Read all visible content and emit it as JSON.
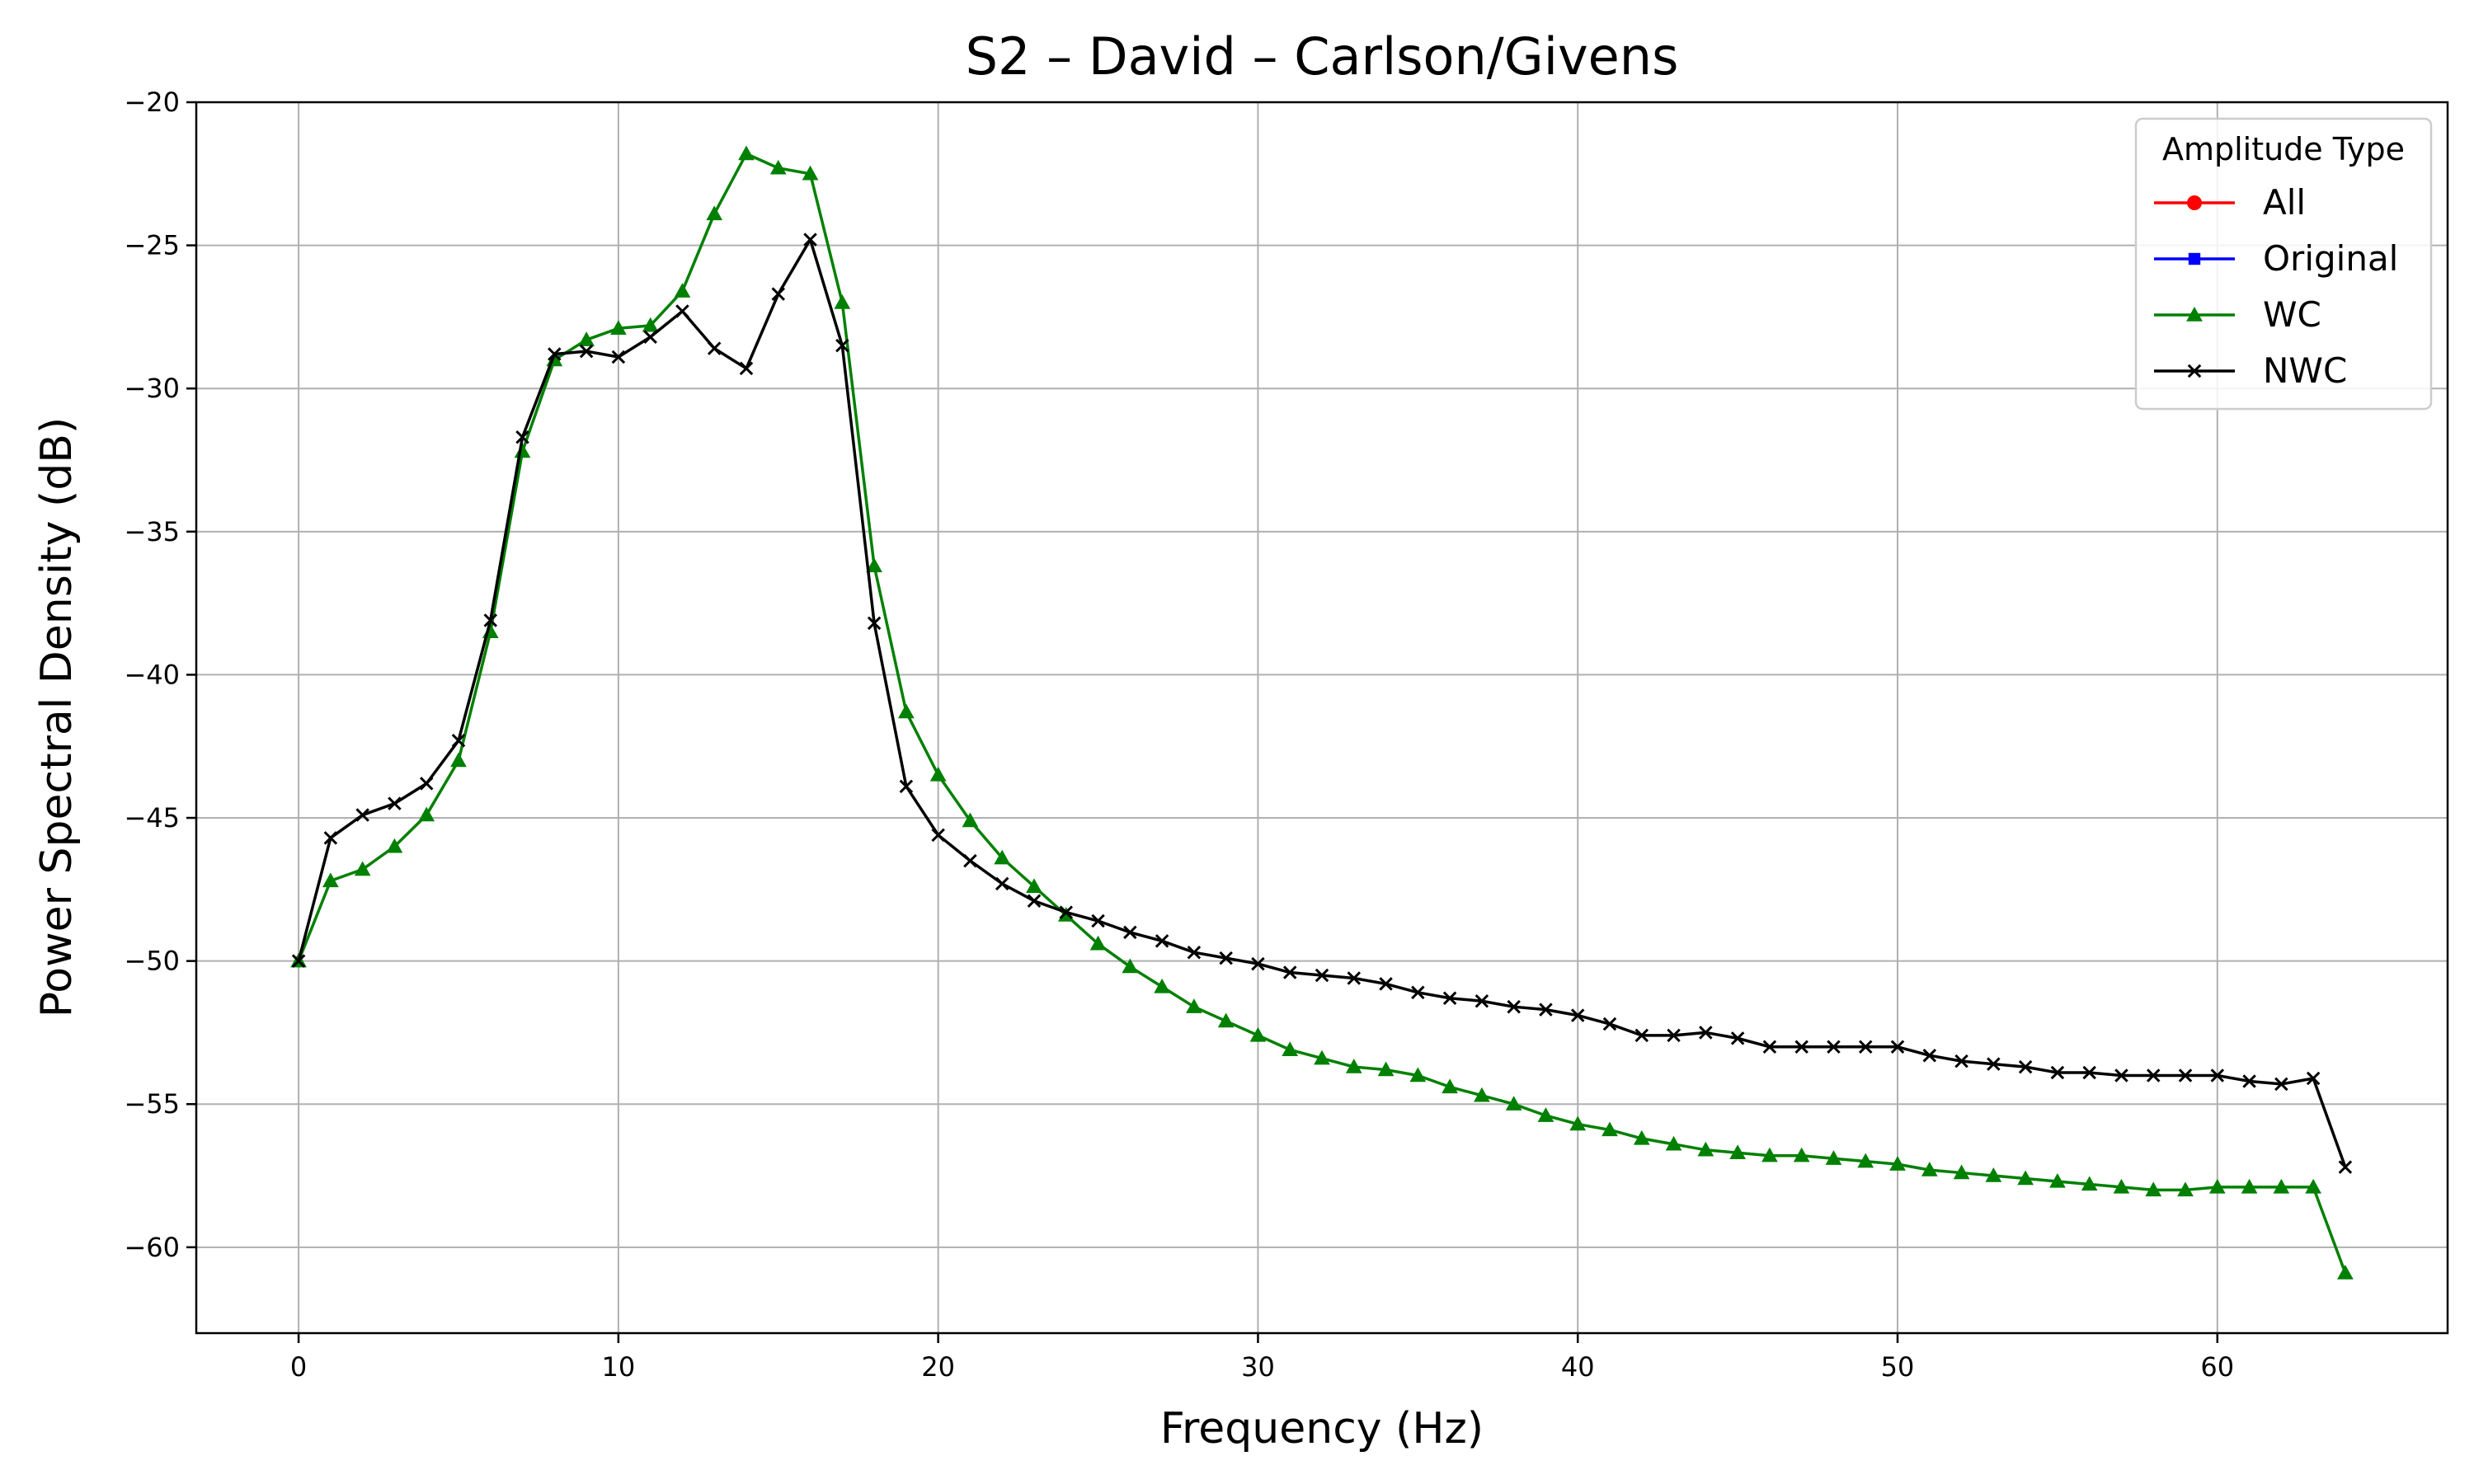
{
  "chart_data": {
    "type": "line",
    "title": "S2 – David – Carlson/Givens",
    "xlabel": "Frequency (Hz)",
    "ylabel": "Power Spectral Density (dB)",
    "xlim": [
      -3.2,
      67.2
    ],
    "ylim": [
      -63,
      -20
    ],
    "xticks": [
      0,
      10,
      20,
      30,
      40,
      50,
      60
    ],
    "yticks": [
      -60,
      -55,
      -50,
      -45,
      -40,
      -35,
      -30,
      -25,
      -20
    ],
    "xtick_labels": [
      "0",
      "10",
      "20",
      "30",
      "40",
      "50",
      "60"
    ],
    "ytick_labels": [
      "−60",
      "−55",
      "−50",
      "−45",
      "−40",
      "−35",
      "−30",
      "−25",
      "−20"
    ],
    "grid": true,
    "legend": {
      "title": "Amplitude Type",
      "placement": "top-right",
      "entries": [
        {
          "label": "All",
          "color": "#ff0000",
          "marker": "circle"
        },
        {
          "label": "Original",
          "color": "#0000ff",
          "marker": "square"
        },
        {
          "label": "WC",
          "color": "#008000",
          "marker": "triangle"
        },
        {
          "label": "NWC",
          "color": "#000000",
          "marker": "x"
        }
      ]
    },
    "x": [
      0,
      1,
      2,
      3,
      4,
      5,
      6,
      7,
      8,
      9,
      10,
      11,
      12,
      13,
      14,
      15,
      16,
      17,
      18,
      19,
      20,
      21,
      22,
      23,
      24,
      25,
      26,
      27,
      28,
      29,
      30,
      31,
      32,
      33,
      34,
      35,
      36,
      37,
      38,
      39,
      40,
      41,
      42,
      43,
      44,
      45,
      46,
      47,
      48,
      49,
      50,
      51,
      52,
      53,
      54,
      55,
      56,
      57,
      58,
      59,
      60,
      61,
      62,
      63,
      64
    ],
    "series": [
      {
        "name": "WC",
        "color": "#008000",
        "marker": "triangle",
        "values": [
          -50.0,
          -47.2,
          -46.8,
          -46.0,
          -44.9,
          -43.0,
          -38.5,
          -32.2,
          -29.0,
          -28.3,
          -27.9,
          -27.8,
          -26.6,
          -23.9,
          -21.8,
          -22.3,
          -22.5,
          -27.0,
          -36.2,
          -41.3,
          -43.5,
          -45.1,
          -46.4,
          -47.4,
          -48.4,
          -49.4,
          -50.2,
          -50.9,
          -51.6,
          -52.1,
          -52.6,
          -53.1,
          -53.4,
          -53.7,
          -53.8,
          -54.0,
          -54.4,
          -54.7,
          -55.0,
          -55.4,
          -55.7,
          -55.9,
          -56.2,
          -56.4,
          -56.6,
          -56.7,
          -56.8,
          -56.8,
          -56.9,
          -57.0,
          -57.1,
          -57.3,
          -57.4,
          -57.5,
          -57.6,
          -57.7,
          -57.8,
          -57.9,
          -58.0,
          -58.0,
          -57.9,
          -57.9,
          -57.9,
          -57.9,
          -60.9
        ]
      },
      {
        "name": "NWC",
        "color": "#000000",
        "marker": "x",
        "values": [
          -50.0,
          -45.7,
          -44.9,
          -44.5,
          -43.8,
          -42.3,
          -38.1,
          -31.7,
          -28.8,
          -28.7,
          -28.9,
          -28.2,
          -27.3,
          -28.6,
          -29.3,
          -26.7,
          -24.8,
          -28.5,
          -38.2,
          -43.9,
          -45.6,
          -46.5,
          -47.3,
          -47.9,
          -48.3,
          -48.6,
          -49.0,
          -49.3,
          -49.7,
          -49.9,
          -50.1,
          -50.4,
          -50.5,
          -50.6,
          -50.8,
          -51.1,
          -51.3,
          -51.4,
          -51.6,
          -51.7,
          -51.9,
          -52.2,
          -52.6,
          -52.6,
          -52.5,
          -52.7,
          -53.0,
          -53.0,
          -53.0,
          -53.0,
          -53.0,
          -53.3,
          -53.5,
          -53.6,
          -53.7,
          -53.9,
          -53.9,
          -54.0,
          -54.0,
          -54.0,
          -54.0,
          -54.2,
          -54.3,
          -54.1,
          -57.2
        ]
      }
    ]
  }
}
